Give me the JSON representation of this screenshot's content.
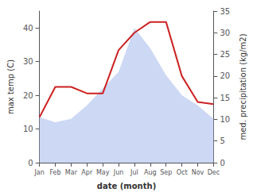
{
  "chart_data": {
    "type": "line",
    "xlabel": "date (month)",
    "ylabel": "max temp (C)",
    "y2label": "med. precipitation (kg/m2)",
    "categories": [
      "Jan",
      "Feb",
      "Mar",
      "Apr",
      "May",
      "Jun",
      "Jul",
      "Aug",
      "Sep",
      "Oct",
      "Nov",
      "Dec"
    ],
    "series": [
      {
        "type": "area",
        "color": "#b8c8f0",
        "values": [
          13.5,
          12,
          13,
          17,
          22,
          27,
          40,
          34,
          26,
          20,
          17,
          13
        ]
      },
      {
        "type": "line",
        "color": "#cc2222",
        "axis": "y2",
        "values": [
          10.5,
          17.5,
          17.5,
          16,
          16,
          26,
          30,
          32.5,
          32.5,
          20,
          14,
          13.5
        ]
      }
    ],
    "ylim": [
      0,
      45
    ],
    "yticks": [
      0,
      10,
      20,
      30,
      40
    ],
    "y2lim": [
      0,
      35
    ],
    "y2ticks": [
      0,
      5,
      10,
      15,
      20,
      25,
      30,
      35
    ],
    "grid": false
  }
}
